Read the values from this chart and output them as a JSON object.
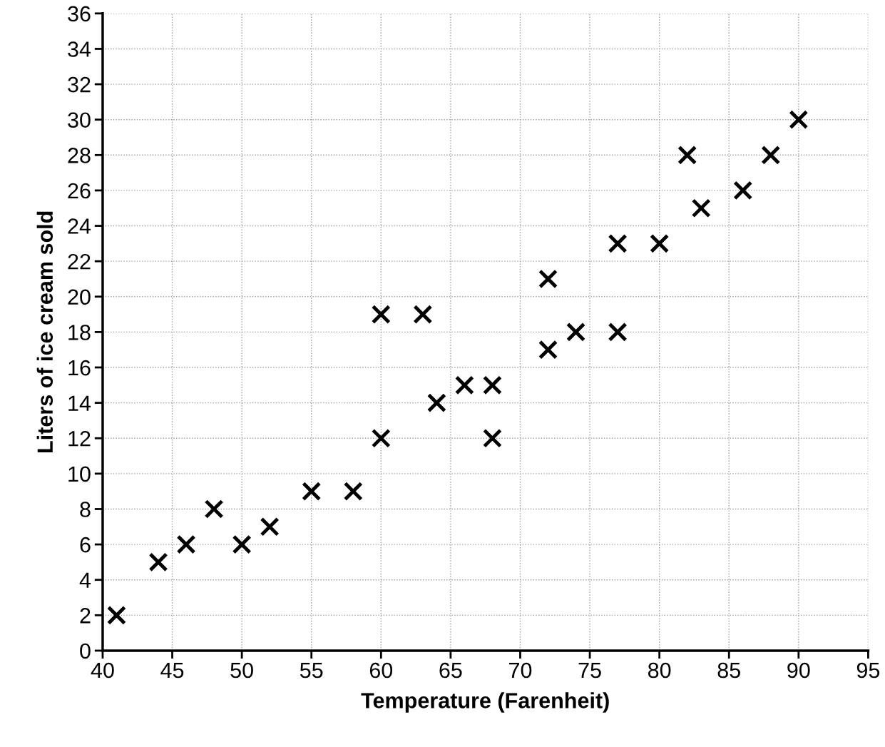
{
  "chart_data": {
    "type": "scatter",
    "xlabel": "Temperature (Farenheit)",
    "ylabel": "Liters of ice cream sold",
    "x": [
      41,
      44,
      46,
      48,
      50,
      52,
      55,
      58,
      60,
      60,
      63,
      64,
      66,
      68,
      68,
      72,
      72,
      74,
      77,
      77,
      80,
      82,
      83,
      86,
      88,
      90
    ],
    "values": [
      2,
      5,
      6,
      8,
      6,
      7,
      9,
      9,
      19,
      12,
      19,
      14,
      15,
      15,
      12,
      21,
      17,
      18,
      23,
      18,
      23,
      28,
      25,
      26,
      28,
      30
    ],
    "color": "#000000",
    "marker": "cross",
    "grid": true,
    "legend": false,
    "xlim": [
      40,
      95
    ],
    "xticks": [
      40,
      45,
      50,
      55,
      60,
      65,
      70,
      75,
      80,
      85,
      90,
      95
    ],
    "ylim": [
      0,
      36
    ],
    "yticks": [
      0,
      2,
      4,
      6,
      8,
      10,
      12,
      14,
      16,
      18,
      20,
      22,
      24,
      26,
      28,
      30,
      32,
      34,
      36
    ]
  }
}
